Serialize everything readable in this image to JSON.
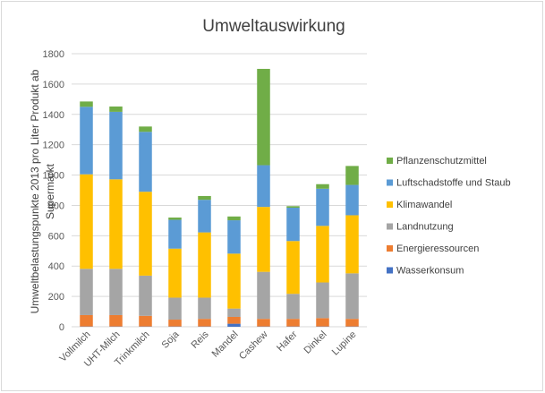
{
  "chart_data": {
    "type": "bar",
    "stacked": true,
    "title": "Umweltauswirkung",
    "xlabel": "",
    "ylabel": "Umweltbelastungspunkte 2013 pro Liter Produkt ab Supermarkt",
    "ylim": [
      0,
      1800
    ],
    "yticks": [
      0,
      200,
      400,
      600,
      800,
      1000,
      1200,
      1400,
      1600,
      1800
    ],
    "grid": true,
    "legend_position": "right",
    "categories": [
      "Vollmilch",
      "UHT-Milch",
      "Trinkmilch",
      "Soja",
      "Reis",
      "Mandel",
      "Cashew",
      "Hafer",
      "Dinkel",
      "Lupine"
    ],
    "series": [
      {
        "name": "Wasserkonsum",
        "color": "#4472c4",
        "values": [
          2,
          2,
          2,
          2,
          2,
          20,
          2,
          2,
          2,
          2
        ]
      },
      {
        "name": "Energieressourcen",
        "color": "#ed7d31",
        "values": [
          75,
          75,
          70,
          45,
          50,
          45,
          50,
          50,
          55,
          50
        ]
      },
      {
        "name": "Landnutzung",
        "color": "#a5a5a5",
        "values": [
          305,
          305,
          265,
          145,
          140,
          55,
          310,
          165,
          235,
          300
        ]
      },
      {
        "name": "Klimawandel",
        "color": "#ffc000",
        "values": [
          623,
          590,
          553,
          323,
          430,
          362,
          428,
          348,
          373,
          383
        ]
      },
      {
        "name": "Luftschadstoffe und Staub",
        "color": "#5b9bd5",
        "values": [
          445,
          445,
          395,
          190,
          215,
          220,
          275,
          220,
          245,
          200
        ]
      },
      {
        "name": "Pflanzenschutzmittel",
        "color": "#70ad47",
        "values": [
          35,
          35,
          35,
          15,
          25,
          25,
          635,
          10,
          30,
          125
        ]
      }
    ]
  }
}
